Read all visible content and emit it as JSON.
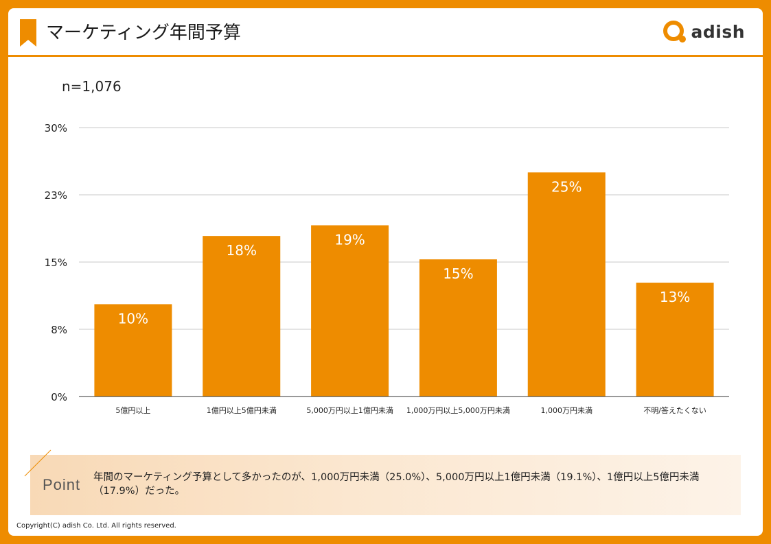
{
  "header": {
    "title": "マーケティング年間予算",
    "logo_text": "adish"
  },
  "n_label": "n=1,076",
  "chart_data": {
    "type": "bar",
    "categories": [
      "5億円以上",
      "1億円以上5億円未満",
      "5,000万円以上1億円未満",
      "1,000万円以上5,000万円未満",
      "1,000万円未満",
      "不明/答えたくない"
    ],
    "values": [
      10.3,
      17.9,
      19.1,
      15.3,
      25.0,
      12.7
    ],
    "data_labels": [
      "10%",
      "18%",
      "19%",
      "15%",
      "25%",
      "13%"
    ],
    "y_ticks": [
      0,
      7.5,
      15,
      22.5,
      30
    ],
    "y_tick_labels": [
      "0%",
      "8%",
      "15%",
      "23%",
      "30%"
    ],
    "ylim": [
      0,
      30
    ],
    "grid": true,
    "bar_color": "#ee8c00",
    "title": "",
    "xlabel": "",
    "ylabel": ""
  },
  "point": {
    "label": "Point",
    "text": "年間のマーケティング予算として多かったのが、1,000万円未満（25.0%）、5,000万円以上1億円未満（19.1%）、1億円以上5億円未満（17.9%）だった。"
  },
  "footer": {
    "copyright": "Copyright(C) adish Co. Ltd.  All rights reserved."
  },
  "colors": {
    "accent": "#ee8c00",
    "grid": "#c8c8c8",
    "axis": "#333333"
  }
}
